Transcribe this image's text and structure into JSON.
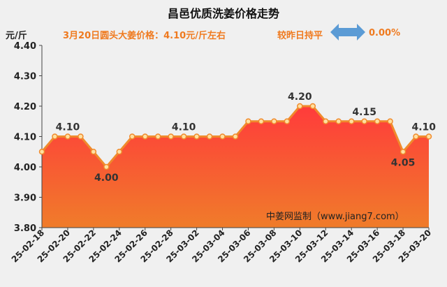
{
  "chart_data": {
    "type": "area",
    "title": "昌邑优质洗姜价格走势",
    "ylabel": "元/斤",
    "subtitle_price": "3月20日圆头大姜价格：4.10元/斤左右",
    "subtitle_compare": "较昨日持平",
    "subtitle_change": "0.00%",
    "watermark": "中姜网监制（www.jiang7.com）",
    "ylim": [
      3.8,
      4.4
    ],
    "yticks": [
      "4.40",
      "4.30",
      "4.20",
      "4.10",
      "4.00",
      "3.90",
      "3.80"
    ],
    "grid": false,
    "x": [
      "25-02-18",
      "25-02-19",
      "25-02-20",
      "25-02-21",
      "25-02-22",
      "25-02-23",
      "25-02-24",
      "25-02-25",
      "25-02-26",
      "25-02-27",
      "25-02-28",
      "25-03-01",
      "25-03-02",
      "25-03-03",
      "25-03-04",
      "25-03-05",
      "25-03-06",
      "25-03-07",
      "25-03-08",
      "25-03-09",
      "25-03-10",
      "25-03-11",
      "25-03-12",
      "25-03-13",
      "25-03-14",
      "25-03-15",
      "25-03-16",
      "25-03-17",
      "25-03-18",
      "25-03-19",
      "25-03-20"
    ],
    "xtick_labels": [
      "25-02-18",
      "25-02-20",
      "25-02-22",
      "25-02-24",
      "25-02-26",
      "25-02-28",
      "25-03-02",
      "25-03-04",
      "25-03-06",
      "25-03-08",
      "25-03-10",
      "25-03-12",
      "25-03-14",
      "25-03-16",
      "25-03-18",
      "25-03-20"
    ],
    "values": [
      4.05,
      4.1,
      4.1,
      4.1,
      4.05,
      4.0,
      4.05,
      4.1,
      4.1,
      4.1,
      4.1,
      4.1,
      4.1,
      4.1,
      4.1,
      4.1,
      4.15,
      4.15,
      4.15,
      4.15,
      4.2,
      4.2,
      4.15,
      4.15,
      4.15,
      4.15,
      4.15,
      4.15,
      4.05,
      4.1,
      4.1
    ],
    "data_labels": [
      {
        "index": 2,
        "text": "4.10"
      },
      {
        "index": 5,
        "text": "4.00"
      },
      {
        "index": 11,
        "text": "4.10"
      },
      {
        "index": 20,
        "text": "4.20"
      },
      {
        "index": 25,
        "text": "4.15"
      },
      {
        "index": 28,
        "text": "4.05"
      },
      {
        "index": 30,
        "text": "4.10"
      }
    ],
    "colors": {
      "line": "#f08a2c",
      "marker_fill": "#ffe0a0",
      "area_top": "#ff3b3b",
      "area_bottom": "#f07c2a",
      "accent_text": "#ef7a1f",
      "arrow": "#5b9bd5"
    }
  }
}
